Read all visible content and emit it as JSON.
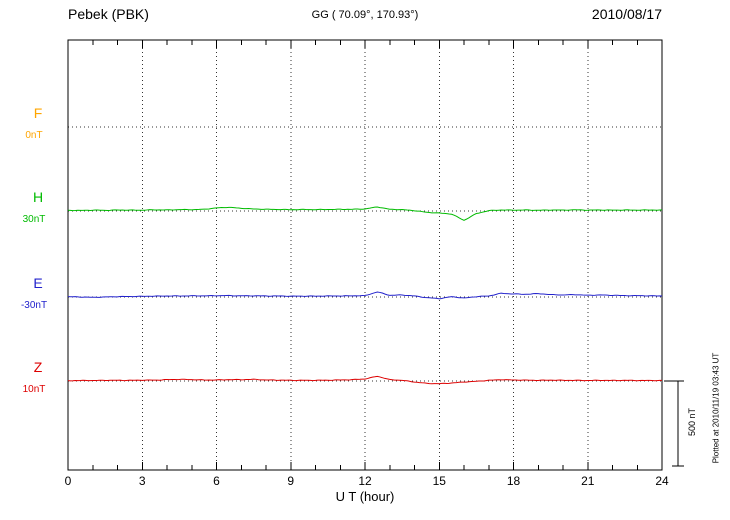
{
  "header": {
    "station": "Pebek (PBK)",
    "coords": "GG ( 70.09°, 170.93°)",
    "date": "2010/08/17"
  },
  "footer": {
    "xlabel": "U T (hour)"
  },
  "side": {
    "plotted_at": "Plotted at 2010/11/19 03:43 UT",
    "scale_label": "500 nT"
  },
  "chart_data": {
    "type": "line",
    "title": "Pebek (PBK) magnetogram 2010/08/17",
    "xlabel": "U T (hour)",
    "x_range": [
      0,
      24
    ],
    "x_ticks": [
      0,
      3,
      6,
      9,
      12,
      15,
      18,
      21,
      24
    ],
    "x_minor_tick_step": 1,
    "grid": "dotted vertical lines at 3h intervals, dotted horizontal baseline per trace",
    "scale": {
      "label": "500 nT",
      "nT": 500
    },
    "x_start": 0,
    "x_step": 0.5,
    "series": [
      {
        "name": "F",
        "color": "#ffa500",
        "baseline_label": "0nT",
        "values": []
      },
      {
        "name": "H",
        "color": "#00bb00",
        "baseline_label": "30nT",
        "values": [
          4,
          3,
          5,
          4,
          6,
          5,
          5,
          7,
          6,
          8,
          8,
          10,
          18,
          22,
          16,
          12,
          10,
          9,
          8,
          9,
          8,
          9,
          10,
          10,
          12,
          24,
          10,
          8,
          2,
          -8,
          -12,
          -18,
          -55,
          -15,
          2,
          6,
          5,
          6,
          4,
          6,
          5,
          7,
          5,
          6,
          5,
          6,
          5,
          6,
          5
        ]
      },
      {
        "name": "E",
        "color": "#2222cc",
        "baseline_label": "-30nT",
        "values": [
          2,
          0,
          -2,
          0,
          2,
          3,
          4,
          5,
          6,
          6,
          7,
          7,
          8,
          8,
          7,
          7,
          6,
          6,
          5,
          5,
          5,
          6,
          6,
          7,
          8,
          30,
          10,
          12,
          6,
          -4,
          -10,
          2,
          -6,
          2,
          6,
          22,
          18,
          16,
          20,
          14,
          12,
          14,
          10,
          12,
          10,
          8,
          8,
          7,
          6
        ]
      },
      {
        "name": "Z",
        "color": "#dd0000",
        "baseline_label": "10nT",
        "values": [
          2,
          3,
          3,
          4,
          4,
          4,
          5,
          5,
          8,
          10,
          8,
          6,
          6,
          8,
          8,
          10,
          6,
          5,
          4,
          4,
          4,
          5,
          6,
          8,
          12,
          28,
          8,
          4,
          -6,
          -14,
          -16,
          -12,
          -6,
          -2,
          4,
          8,
          6,
          5,
          4,
          5,
          4,
          4,
          3,
          4,
          3,
          4,
          3,
          3,
          3
        ]
      }
    ]
  }
}
